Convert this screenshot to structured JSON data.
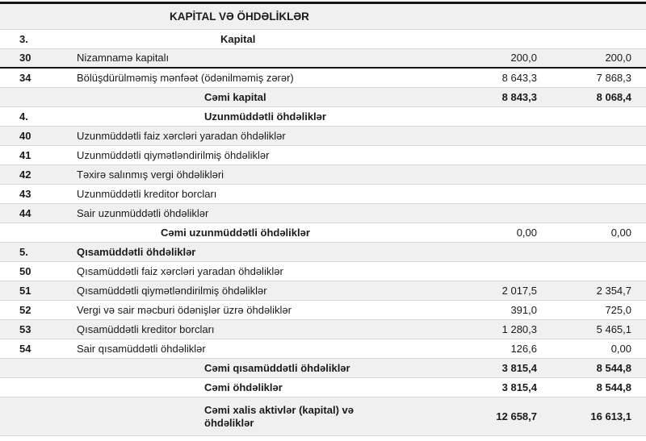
{
  "document_kind": "balance-sheet-section",
  "colors": {
    "stripe": "#f0f0f0",
    "heavy_rule": "#161616",
    "row_separator": "#dadada",
    "text": "#1a1a1a"
  },
  "table": {
    "title": "KAPİTAL VƏ ÖHDƏLİKLƏR",
    "rows": [
      {
        "code": "",
        "label": "KAPİTAL VƏ ÖHDƏLİKLƏR",
        "v1": "",
        "v2": "",
        "type": "title",
        "indent": 115
      },
      {
        "code": "3.",
        "label": "Kapital",
        "v1": "",
        "v2": "",
        "type": "section",
        "indent": 178
      },
      {
        "code": "30",
        "label": "Nizamnamə kapitalı",
        "v1": "200,0",
        "v2": "200,0",
        "type": "item",
        "indent": 0,
        "rule": "heavy"
      },
      {
        "code": "34",
        "label": "Bölüşdürülməmiş mənfəət (ödənilməmiş zərər)",
        "v1": "8 643,3",
        "v2": "7 868,3",
        "type": "item",
        "indent": 0
      },
      {
        "code": "",
        "label": "Cəmi kapital",
        "v1": "8 843,3",
        "v2": "8 068,4",
        "type": "total",
        "indent": 158,
        "bold_values": true
      },
      {
        "code": "4.",
        "label": "Uzunmüddətli öhdəliklər",
        "v1": "",
        "v2": "",
        "type": "section",
        "indent": 158
      },
      {
        "code": "40",
        "label": "Uzunmüddətli faiz xərcləri yaradan öhdəliklər",
        "v1": "",
        "v2": "",
        "type": "item",
        "indent": 0
      },
      {
        "code": "41",
        "label": "Uzunmüddətli qiymətləndirilmiş öhdəliklər",
        "v1": "",
        "v2": "",
        "type": "item",
        "indent": 0
      },
      {
        "code": "42",
        "label": "Təxirə salınmış vergi öhdəlikləri",
        "v1": "",
        "v2": "",
        "type": "item",
        "indent": 0
      },
      {
        "code": "43",
        "label": "Uzunmüddətli kreditor borcları",
        "v1": "",
        "v2": "",
        "type": "item",
        "indent": 0
      },
      {
        "code": "44",
        "label": "Sair uzunmüddətli öhdəliklər",
        "v1": "",
        "v2": "",
        "type": "item",
        "indent": 0
      },
      {
        "code": "",
        "label": "Cəmi uzunmüddətli öhdəliklər",
        "v1": "0,00",
        "v2": "0,00",
        "type": "total",
        "indent": 104,
        "bold_values": false
      },
      {
        "code": "5.",
        "label": "Qısamüddətli öhdəliklər",
        "v1": "",
        "v2": "",
        "type": "section",
        "indent": 0
      },
      {
        "code": "50",
        "label": "Qısamüddətli faiz xərcləri yaradan öhdəliklər",
        "v1": "",
        "v2": "",
        "type": "item",
        "indent": 0
      },
      {
        "code": "51",
        "label": "Qısamüddətli qiymətləndirilmiş öhdəliklər",
        "v1": "2 017,5",
        "v2": "2 354,7",
        "type": "item",
        "indent": 0
      },
      {
        "code": "52",
        "label": "Vergi və sair məcburi ödənişlər üzrə öhdəliklər",
        "v1": "391,0",
        "v2": "725,0",
        "type": "item",
        "indent": 0
      },
      {
        "code": "53",
        "label": "Qısamüddətli kreditor borcları",
        "v1": "1 280,3",
        "v2": "5 465,1",
        "type": "item",
        "indent": 0
      },
      {
        "code": "54",
        "label": "Sair qısamüddətli öhdəliklər",
        "v1": "126,6",
        "v2": "0,00",
        "type": "item",
        "indent": 0
      },
      {
        "code": "",
        "label": "Cəmi qısamüddətli öhdəliklər",
        "v1": "3 815,4",
        "v2": "8 544,8",
        "type": "total",
        "indent": 158,
        "bold_values": true
      },
      {
        "code": "",
        "label": "Cəmi öhdəliklər",
        "v1": "3 815,4",
        "v2": "8 544,8",
        "type": "total",
        "indent": 158,
        "bold_values": true
      },
      {
        "code": "",
        "label": "Cəmi xalis aktivlər (kapital) və\nöhdəliklər",
        "v1": "12 658,7",
        "v2": "16 613,1",
        "type": "total",
        "indent": 158,
        "bold_values": true,
        "tall": true
      }
    ]
  }
}
